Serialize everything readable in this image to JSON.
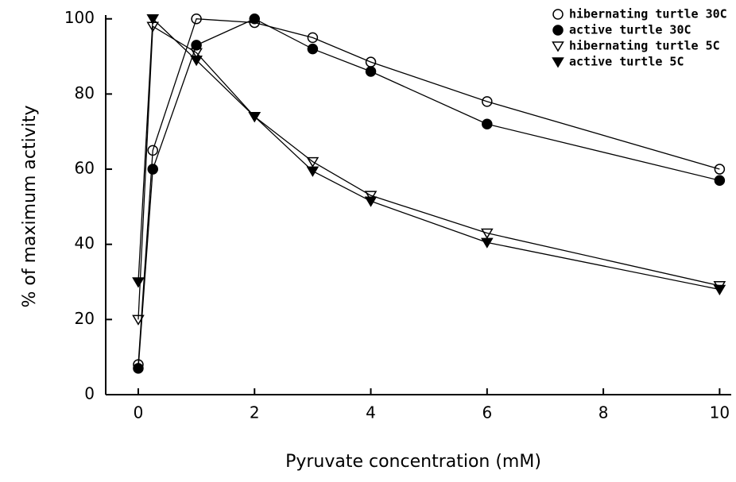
{
  "chart_data": {
    "type": "line",
    "xlabel": "Pyruvate concentration (mM)",
    "ylabel": "% of maximum activity",
    "xlim": [
      -0.56,
      10.2
    ],
    "ylim": [
      0,
      101
    ],
    "xticks": [
      0,
      2,
      4,
      6,
      8,
      10
    ],
    "yticks": [
      0,
      20,
      40,
      60,
      80,
      100
    ],
    "legend": "upper right",
    "series": [
      {
        "name": "hibernating turtle 30C",
        "color": "#000",
        "marker": "circle",
        "fill": "none",
        "x": [
          0,
          0.25,
          1,
          2,
          3,
          4,
          6,
          10
        ],
        "values": [
          8,
          65,
          100,
          99,
          95,
          88.5,
          78,
          60
        ]
      },
      {
        "name": "active turtle 30C",
        "color": "#000",
        "marker": "circle",
        "fill": "#000",
        "x": [
          0,
          0.25,
          1,
          2,
          3,
          4,
          6,
          10
        ],
        "values": [
          7,
          60,
          93,
          100,
          92,
          86,
          72,
          57
        ]
      },
      {
        "name": "hibernating turtle 5C",
        "color": "#000",
        "marker": "triangle-down",
        "fill": "none",
        "x": [
          0,
          0.25,
          1,
          2,
          3,
          4,
          6,
          10
        ],
        "values": [
          20,
          98,
          91,
          74,
          62,
          53,
          43,
          29
        ]
      },
      {
        "name": "active turtle 5C",
        "color": "#000",
        "marker": "triangle-down",
        "fill": "#000",
        "x": [
          0,
          0.25,
          1,
          2,
          3,
          4,
          6,
          10
        ],
        "values": [
          30,
          100,
          89,
          74,
          59.5,
          51.5,
          40.5,
          28
        ]
      }
    ]
  }
}
